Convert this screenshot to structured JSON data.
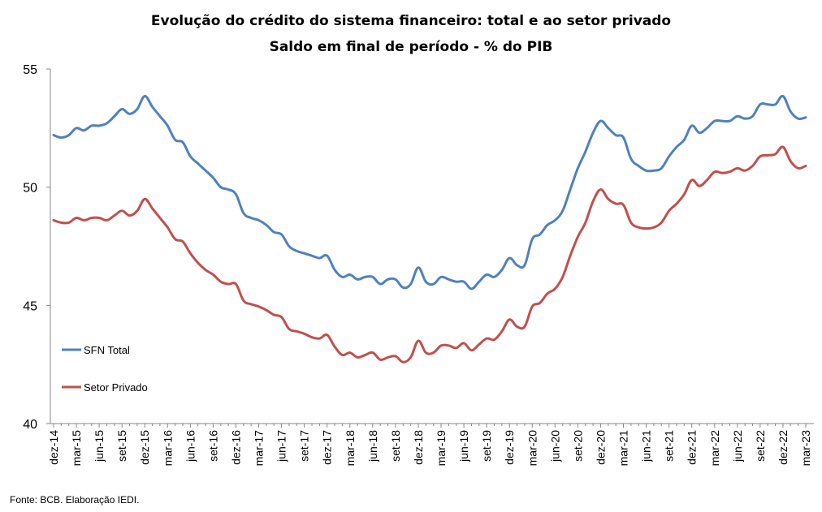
{
  "chart_data": {
    "type": "line",
    "title": "Evolução do crédito do sistema financeiro: total e ao setor privado",
    "subtitle": "Saldo em final de período -  % do PIB",
    "ylim": [
      40,
      55
    ],
    "yticks": [
      "55",
      "50",
      "45",
      "40"
    ],
    "ytick_values": [
      55,
      50,
      45,
      40
    ],
    "grid": false,
    "legend_position": "left",
    "source": "Fonte: BCB. Elaboração IEDI.",
    "categories": [
      "dez-14",
      "jan-15",
      "fev-15",
      "mar-15",
      "abr-15",
      "mai-15",
      "jun-15",
      "jul-15",
      "ago-15",
      "set-15",
      "out-15",
      "nov-15",
      "dez-15",
      "jan-16",
      "fev-16",
      "mar-16",
      "abr-16",
      "mai-16",
      "jun-16",
      "jul-16",
      "ago-16",
      "set-16",
      "out-16",
      "nov-16",
      "dez-16",
      "jan-17",
      "fev-17",
      "mar-17",
      "abr-17",
      "mai-17",
      "jun-17",
      "jul-17",
      "ago-17",
      "set-17",
      "out-17",
      "nov-17",
      "dez-17",
      "jan-18",
      "fev-18",
      "mar-18",
      "abr-18",
      "mai-18",
      "jun-18",
      "jul-18",
      "ago-18",
      "set-18",
      "out-18",
      "nov-18",
      "dez-18",
      "jan-19",
      "fev-19",
      "mar-19",
      "abr-19",
      "mai-19",
      "jun-19",
      "jul-19",
      "ago-19",
      "set-19",
      "out-19",
      "nov-19",
      "dez-19",
      "jan-20",
      "fev-20",
      "mar-20",
      "abr-20",
      "mai-20",
      "jun-20",
      "jul-20",
      "ago-20",
      "set-20",
      "out-20",
      "nov-20",
      "dez-20",
      "jan-21",
      "fev-21",
      "mar-21",
      "abr-21",
      "mai-21",
      "jun-21",
      "jul-21",
      "ago-21",
      "set-21",
      "out-21",
      "nov-21",
      "dez-21",
      "jan-22",
      "fev-22",
      "mar-22",
      "abr-22",
      "mai-22",
      "jun-22",
      "jul-22",
      "ago-22",
      "set-22",
      "out-22",
      "nov-22",
      "dez-22",
      "jan-23",
      "fev-23",
      "mar-23"
    ],
    "xtick_labels": [
      "dez-14",
      "mar-15",
      "jun-15",
      "set-15",
      "dez-15",
      "mar-16",
      "jun-16",
      "set-16",
      "dez-16",
      "mar-17",
      "jun-17",
      "set-17",
      "dez-17",
      "mar-18",
      "jun-18",
      "set-18",
      "dez-18",
      "mar-19",
      "jun-19",
      "set-19",
      "dez-19",
      "mar-20",
      "jun-20",
      "set-20",
      "dez-20",
      "mar-21",
      "jun-21",
      "set-21",
      "dez-21",
      "mar-22",
      "jun-22",
      "set-22",
      "dez-22",
      "mar-23"
    ],
    "series": [
      {
        "name": "SFN Total",
        "color": "#4f81bd",
        "values": [
          52.2,
          52.1,
          52.2,
          52.5,
          52.4,
          52.6,
          52.6,
          52.7,
          53.0,
          53.3,
          53.1,
          53.3,
          53.85,
          53.4,
          53.0,
          52.6,
          52.0,
          51.9,
          51.3,
          51.0,
          50.7,
          50.4,
          50.0,
          49.9,
          49.7,
          48.9,
          48.7,
          48.6,
          48.4,
          48.1,
          48.0,
          47.5,
          47.3,
          47.2,
          47.1,
          47.0,
          47.1,
          46.5,
          46.2,
          46.3,
          46.1,
          46.2,
          46.2,
          45.9,
          46.1,
          46.1,
          45.75,
          45.9,
          46.6,
          46.0,
          45.9,
          46.2,
          46.1,
          46.0,
          46.0,
          45.7,
          46.0,
          46.3,
          46.2,
          46.5,
          47.0,
          46.7,
          46.7,
          47.8,
          48.0,
          48.4,
          48.6,
          49.0,
          49.9,
          50.8,
          51.5,
          52.3,
          52.8,
          52.5,
          52.2,
          52.1,
          51.2,
          50.9,
          50.7,
          50.7,
          50.8,
          51.3,
          51.7,
          52.0,
          52.6,
          52.3,
          52.5,
          52.8,
          52.8,
          52.8,
          53.0,
          52.9,
          53.0,
          53.5,
          53.5,
          53.5,
          53.85,
          53.2,
          52.9,
          52.95
        ]
      },
      {
        "name": "Setor Privado",
        "color": "#c0504d",
        "values": [
          48.6,
          48.5,
          48.5,
          48.7,
          48.6,
          48.7,
          48.7,
          48.6,
          48.8,
          49.0,
          48.8,
          49.0,
          49.5,
          49.1,
          48.7,
          48.3,
          47.8,
          47.7,
          47.2,
          46.8,
          46.5,
          46.3,
          46.0,
          45.9,
          45.9,
          45.2,
          45.05,
          44.95,
          44.8,
          44.6,
          44.5,
          44.0,
          43.9,
          43.8,
          43.65,
          43.6,
          43.75,
          43.25,
          42.9,
          43.0,
          42.8,
          42.9,
          43.0,
          42.7,
          42.8,
          42.85,
          42.6,
          42.8,
          43.5,
          43.0,
          43.0,
          43.3,
          43.3,
          43.2,
          43.4,
          43.1,
          43.35,
          43.6,
          43.55,
          43.9,
          44.4,
          44.1,
          44.1,
          44.95,
          45.1,
          45.5,
          45.7,
          46.2,
          47.1,
          47.9,
          48.5,
          49.4,
          49.9,
          49.5,
          49.3,
          49.25,
          48.5,
          48.3,
          48.25,
          48.3,
          48.5,
          49.0,
          49.3,
          49.7,
          50.3,
          50.05,
          50.3,
          50.65,
          50.6,
          50.65,
          50.8,
          50.7,
          50.9,
          51.3,
          51.35,
          51.4,
          51.7,
          51.1,
          50.8,
          50.9
        ]
      }
    ]
  }
}
